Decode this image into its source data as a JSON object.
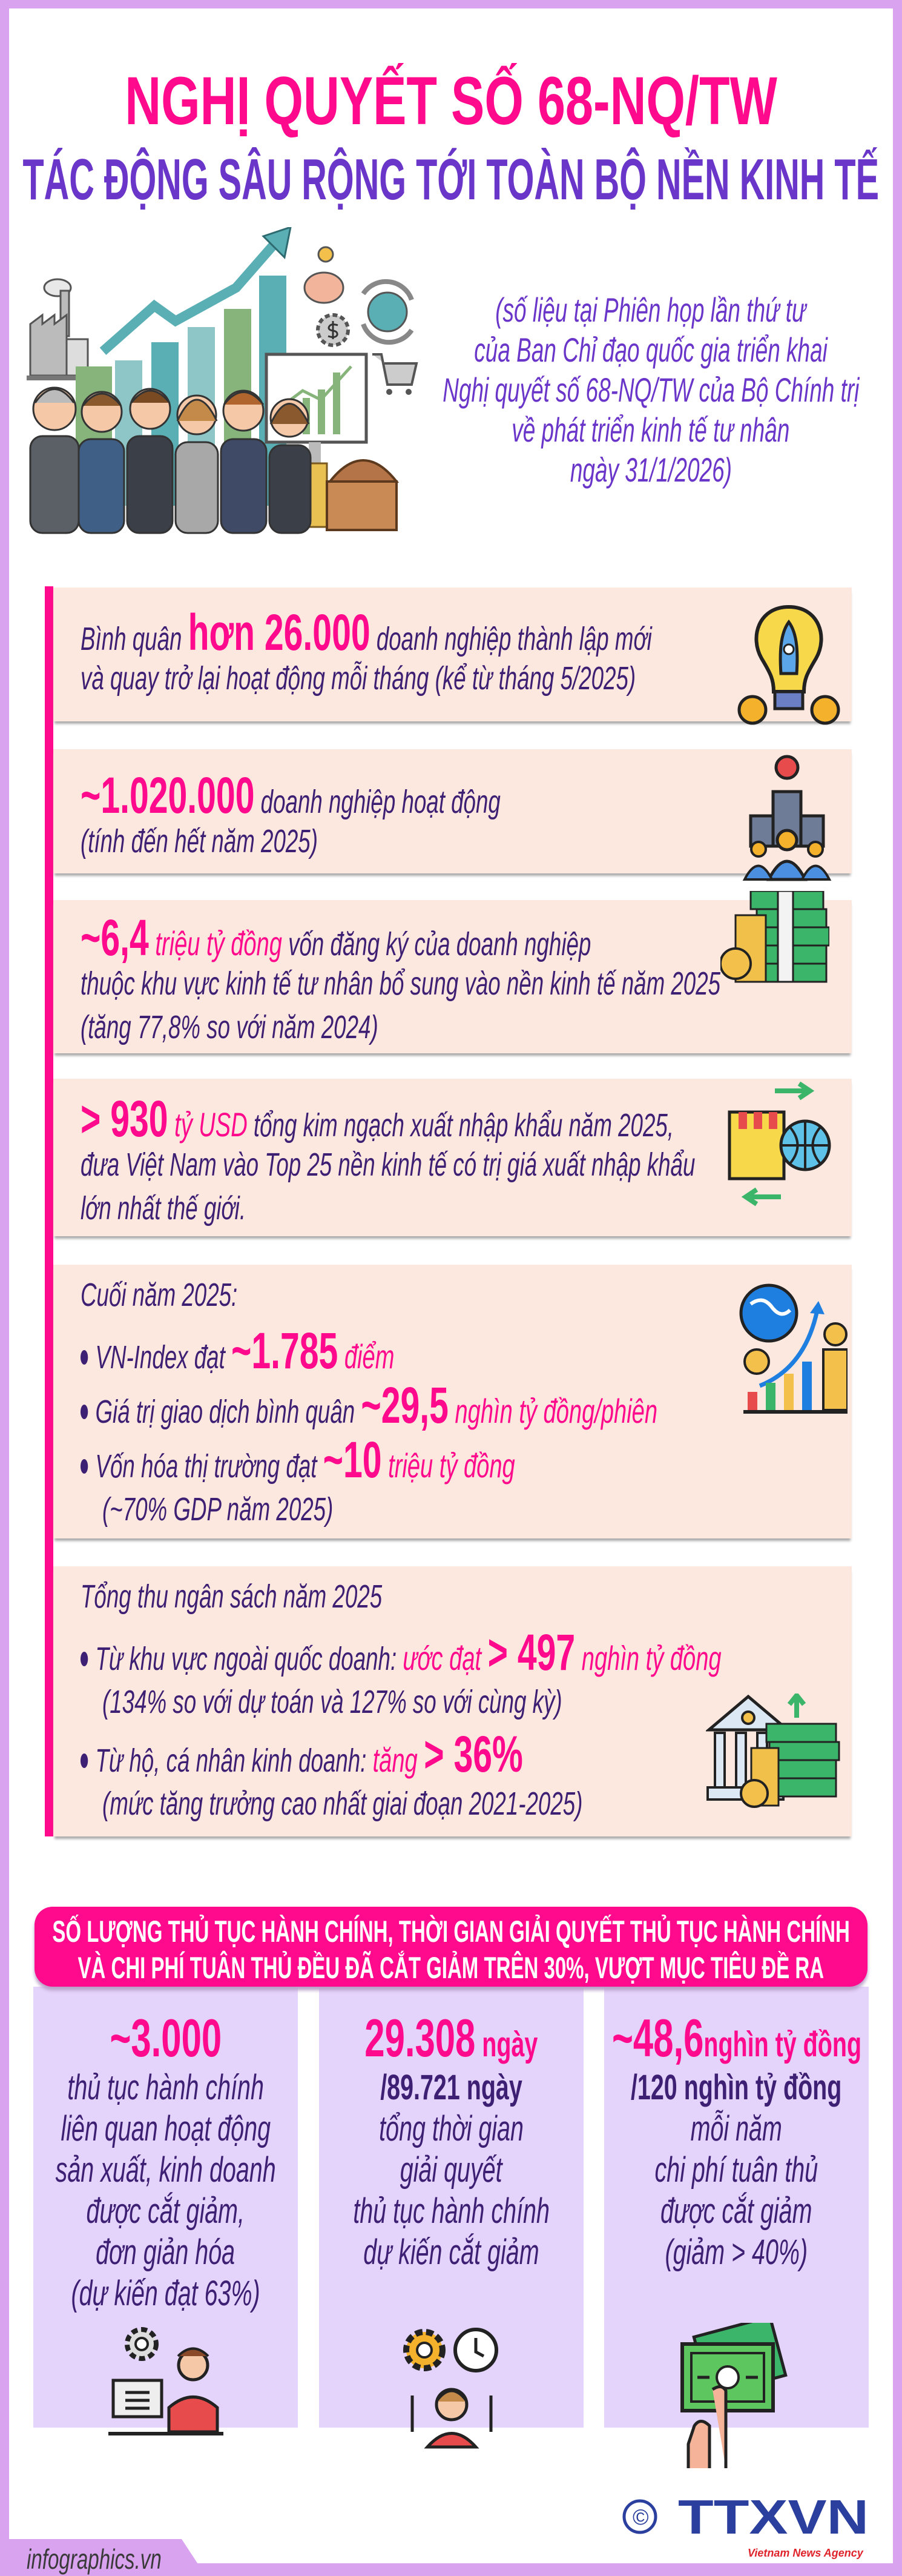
{
  "colors": {
    "pink": "#ff0a8c",
    "purple": "#6a35c9",
    "dark_purple": "#3d1f73",
    "card_bg": "#fde8df",
    "column_bg": "#e4d3fb",
    "frame": "#d9a3f0"
  },
  "header": {
    "title": "NGHỊ QUYẾT SỐ 68-NQ/TW",
    "subtitle": "TÁC ĐỘNG SÂU RỘNG TỚI TOÀN BỘ NỀN KINH TẾ",
    "note_lines": [
      "(số liệu tại Phiên họp lần thứ tư",
      "của Ban Chỉ đạo quốc gia triển khai",
      "Nghị quyết số 68-NQ/TW của Bộ Chính trị",
      "về phát triển kinh tế tư nhân",
      "ngày 31/1/2026)"
    ]
  },
  "cards": [
    {
      "icon": "rocket-lightbulb-icon",
      "lines": [
        [
          {
            "s": "n",
            "t": "Bình quân "
          },
          {
            "s": "b",
            "t": "hơn 26.000"
          },
          {
            "s": "n",
            "t": " doanh nghiệp thành lập mới"
          }
        ],
        [
          {
            "s": "n",
            "t": "và quay trở lại hoạt động mỗi tháng (kể từ tháng 5/2025)"
          }
        ]
      ]
    },
    {
      "icon": "company-building-people-icon",
      "lines": [
        [
          {
            "s": "b",
            "t": "~1.020.000"
          },
          {
            "s": "n",
            "t": " doanh nghiệp hoạt động"
          }
        ],
        [
          {
            "s": "n",
            "t": "(tính đến hết năm 2025)"
          }
        ]
      ]
    },
    {
      "icon": "money-stack-coins-icon",
      "lines": [
        [
          {
            "s": "b",
            "t": "~6,4"
          },
          {
            "s": "p",
            "t": " triệu tỷ đồng"
          },
          {
            "s": "n",
            "t": " vốn đăng ký của doanh nghiệp"
          }
        ],
        [
          {
            "s": "n",
            "t": "thuộc khu vực kinh tế tư nhân bổ sung vào nền kinh tế năm 2025"
          }
        ],
        [
          {
            "s": "n",
            "t": "(tăng 77,8% so với năm 2024)"
          }
        ]
      ]
    },
    {
      "icon": "import-export-globe-icon",
      "lines": [
        [
          {
            "s": "b",
            "t": "> 930"
          },
          {
            "s": "p",
            "t": " tỷ USD"
          },
          {
            "s": "n",
            "t": " tổng kim ngạch xuất nhập khẩu năm 2025,"
          }
        ],
        [
          {
            "s": "n",
            "t": "đưa Việt Nam vào Top 25 nền kinh tế có trị giá xuất nhập khẩu"
          }
        ],
        [
          {
            "s": "n",
            "t": "lớn nhất thế giới."
          }
        ]
      ]
    }
  ],
  "stock_card": {
    "icon": "globe-growth-chart-icon",
    "heading": "Cuối năm 2025:",
    "bullets": [
      {
        "runs": [
          {
            "s": "n",
            "t": "VN-Index đạt "
          },
          {
            "s": "b",
            "t": "~1.785"
          },
          {
            "s": "p",
            "t": " điểm"
          }
        ]
      },
      {
        "runs": [
          {
            "s": "n",
            "t": "Giá trị giao dịch bình quân "
          },
          {
            "s": "b",
            "t": "~29,5"
          },
          {
            "s": "p",
            "t": " nghìn tỷ đồng/phiên"
          }
        ]
      },
      {
        "runs": [
          {
            "s": "n",
            "t": "Vốn hóa thị trường đạt "
          },
          {
            "s": "b",
            "t": "~10"
          },
          {
            "s": "p",
            "t": " triệu tỷ đồng"
          }
        ],
        "sub": "(~70% GDP năm 2025)"
      }
    ]
  },
  "budget_card": {
    "icon": "bank-money-growth-icon",
    "heading": "Tổng thu ngân sách năm 2025",
    "bullets": [
      {
        "runs": [
          {
            "s": "n",
            "t": "Từ khu vực ngoài quốc doanh: "
          },
          {
            "s": "p",
            "t": "ước đạt "
          },
          {
            "s": "b",
            "t": "> 497"
          },
          {
            "s": "p",
            "t": " nghìn tỷ đồng"
          }
        ],
        "sub": "(134% so với dự toán và 127% so với cùng kỳ)"
      },
      {
        "runs": [
          {
            "s": "n",
            "t": "Từ hộ, cá nhân kinh doanh: "
          },
          {
            "s": "p",
            "t": "tăng "
          },
          {
            "s": "b",
            "t": "> 36%"
          }
        ],
        "sub": "(mức tăng trưởng cao nhất giai đoạn 2021-2025)"
      }
    ]
  },
  "banner": {
    "lines": [
      "SỐ LƯỢNG THỦ TỤC HÀNH CHÍNH, THỜI GIAN GIẢI QUYẾT THỦ TỤC HÀNH CHÍNH",
      "VÀ CHI PHÍ TUÂN THỦ ĐỀU ĐÃ CẮT GIẢM TRÊN 30%, VƯỢT MỤC TIÊU ĐỀ RA"
    ]
  },
  "columns": [
    {
      "icon": "settings-computer-person-icon",
      "big": "~3.000",
      "unit": "",
      "bold_line": "",
      "lines": [
        "thủ tục hành chính",
        "liên quan hoạt động",
        "sản xuất, kinh doanh",
        "được cắt giảm,",
        "đơn giản hóa",
        "(dự kiến đạt 63%)"
      ]
    },
    {
      "icon": "gear-clock-person-icon",
      "big": "29.308",
      "unit": " ngày",
      "bold_line": "/89.721 ngày",
      "lines": [
        "tổng thời gian",
        "giải quyết",
        "thủ tục hành chính",
        "dự kiến cắt giảm"
      ]
    },
    {
      "icon": "hand-money-icon",
      "big": "~48,6",
      "unit": "nghìn tỷ đồng",
      "bold_line": "/120 nghìn tỷ đồng",
      "lines": [
        "mỗi năm",
        "chi phí tuân thủ",
        "được cắt giảm",
        "(giảm > 40%)"
      ]
    }
  ],
  "footer": {
    "site": "infographics.vn",
    "copyright": "©",
    "logo_text": "TTXVN",
    "logo_tagline": "Vietnam News Agency"
  }
}
